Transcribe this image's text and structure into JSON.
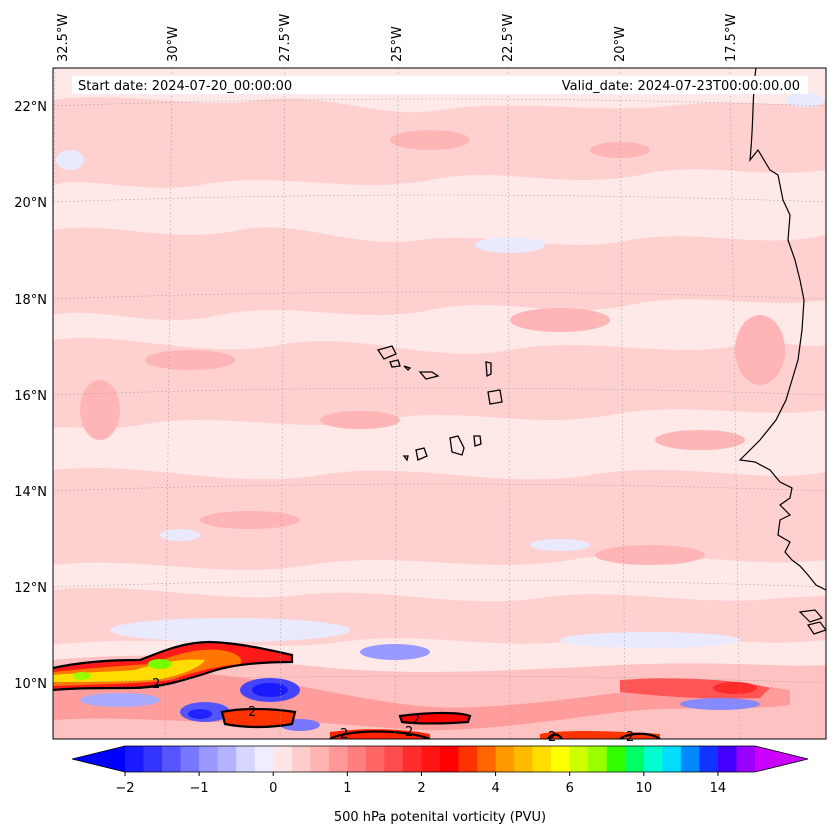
{
  "header": {
    "start_date": "Start date: 2024-07-20_00:00:00",
    "valid_date": "Valid_date: 2024-07-23T00:00:00.00"
  },
  "lon_labels": [
    "32.5°W",
    "30°W",
    "27.5°W",
    "25°W",
    "22.5°W",
    "20°W",
    "17.5°W"
  ],
  "lat_labels": [
    "22°N",
    "20°N",
    "18°N",
    "16°N",
    "14°N",
    "12°N",
    "10°N"
  ],
  "contour_labels": [
    "2",
    "2",
    "2",
    "2",
    "2",
    "2",
    "2"
  ],
  "colorbar": {
    "title": "500 hPa potenital vorticity (PVU)",
    "ticks": [
      "−2",
      "−1",
      "0",
      "1",
      "2",
      "4",
      "6",
      "10",
      "14"
    ],
    "colors": [
      "#1a1aff",
      "#3333ff",
      "#5555ff",
      "#7777ff",
      "#9999ff",
      "#b3b3ff",
      "#d6d6ff",
      "#eeeeff",
      "#ffe6e6",
      "#ffcccc",
      "#ffb3b3",
      "#ff9999",
      "#ff7f7f",
      "#ff6666",
      "#ff4d4d",
      "#ff2d2d",
      "#ff1414",
      "#ff0000",
      "#ff3300",
      "#ff6600",
      "#ff9900",
      "#ffbb00",
      "#ffdd00",
      "#ffff00",
      "#ccff00",
      "#99ff00",
      "#33ff00",
      "#00ff66",
      "#00ffcc",
      "#00ddff",
      "#0088ff",
      "#1133ff",
      "#4400ff",
      "#9900ff"
    ],
    "extend_low_color": "#0000ff",
    "extend_high_color": "#cc00ff"
  },
  "colors": {
    "background_field": "#ffe8e8",
    "light_pink": "#ffd2d2",
    "medium_pink": "#ffb0b0",
    "light_blue": "#eaeaff",
    "coastline": "#000000"
  }
}
